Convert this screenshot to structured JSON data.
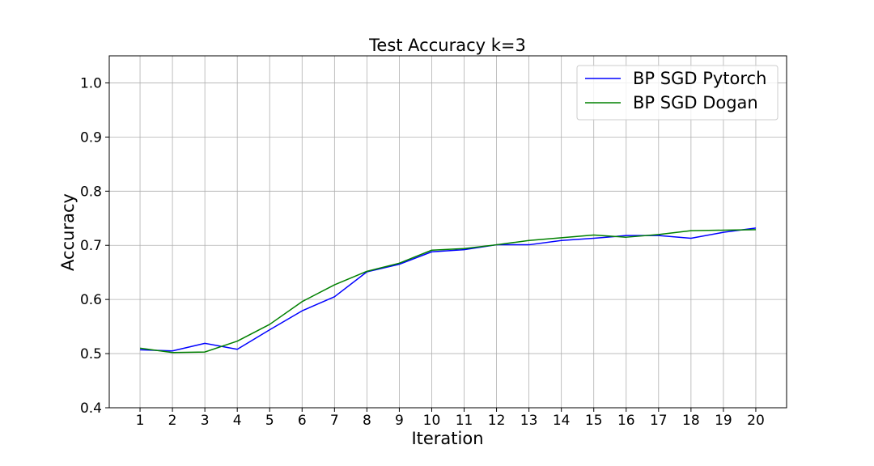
{
  "chart_data": {
    "type": "line",
    "title": "Test Accuracy k=3",
    "xlabel": "Iteration",
    "ylabel": "Accuracy",
    "x": [
      1,
      2,
      3,
      4,
      5,
      6,
      7,
      8,
      9,
      10,
      11,
      12,
      13,
      14,
      15,
      16,
      17,
      18,
      19,
      20
    ],
    "xlim": [
      0.05,
      20.95
    ],
    "ylim": [
      0.4,
      1.05
    ],
    "yticks": [
      0.4,
      0.5,
      0.6,
      0.7,
      0.8,
      0.9,
      1.0
    ],
    "ytick_labels": [
      "0.4",
      "0.5",
      "0.6",
      "0.7",
      "0.8",
      "0.9",
      "1.0"
    ],
    "xtick_labels": [
      "1",
      "2",
      "3",
      "4",
      "5",
      "6",
      "7",
      "8",
      "9",
      "10",
      "11",
      "12",
      "13",
      "14",
      "15",
      "16",
      "17",
      "18",
      "19",
      "20"
    ],
    "grid": true,
    "legend_position": "top-right",
    "series": [
      {
        "name": "BP SGD Pytorch",
        "color": "#0000ff",
        "values": [
          0.507,
          0.505,
          0.519,
          0.508,
          0.544,
          0.579,
          0.605,
          0.651,
          0.665,
          0.688,
          0.692,
          0.701,
          0.701,
          0.709,
          0.713,
          0.718,
          0.718,
          0.713,
          0.724,
          0.732
        ]
      },
      {
        "name": "BP SGD Dogan",
        "color": "#008000",
        "values": [
          0.51,
          0.502,
          0.503,
          0.523,
          0.554,
          0.596,
          0.627,
          0.652,
          0.667,
          0.691,
          0.694,
          0.701,
          0.709,
          0.714,
          0.719,
          0.715,
          0.72,
          0.727,
          0.728,
          0.729
        ]
      }
    ]
  }
}
